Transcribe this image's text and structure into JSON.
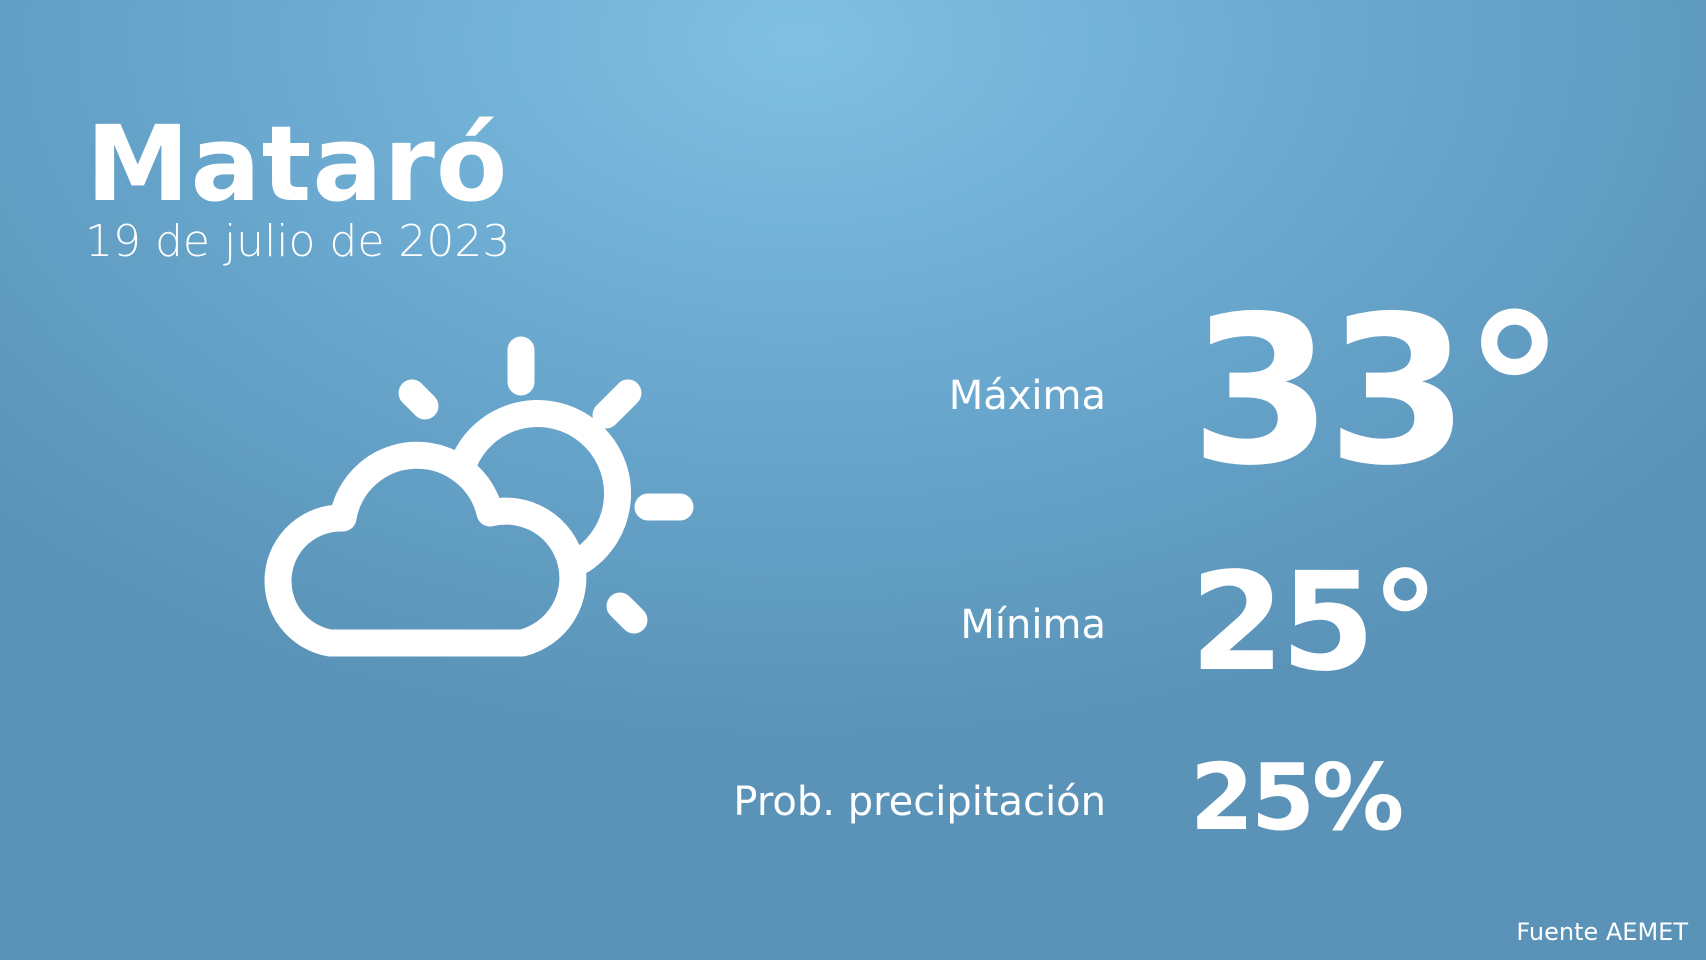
{
  "city": "Mataró",
  "date": "19 de julio de 2023",
  "weather_icon": "partly-cloudy-icon",
  "forecast": {
    "max_label": "Máxima",
    "max_value": "33°",
    "min_label": "Mínima",
    "min_value": "25°",
    "precip_label": "Prob. precipitación",
    "precip_value": "25%"
  },
  "source": "Fuente AEMET",
  "colors": {
    "background_top": "#80c0e2",
    "background_bottom": "#5a93b7",
    "text": "#ffffff"
  }
}
